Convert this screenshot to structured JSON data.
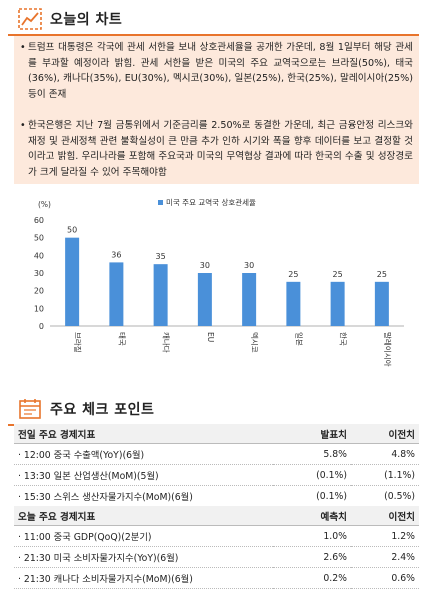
{
  "section1": {
    "title": "오늘의 차트",
    "bullet1": "트럼프 대통령은 각국에 관세 서한을 보내 상호관세율을 공개한 가운데, 8월 1일부터 해당 관세를 부과할 예정이라 밝힘. 관세 서한을 받은 미국의 주요 교역국으로는 브라질(50%), 태국(36%), 캐나다(35%), EU(30%), 멕시코(30%), 일본(25%), 한국(25%), 말레이시아(25%) 등이 존재",
    "bullet2": "한국은행은 지난 7월 금통위에서 기준금리를 2.50%로 동결한 가운데, 최근 금융안정 리스크와 재정 및 관세정책 관련 불확실성이 큰 만큼 추가 인하 시기와 폭을 향후 데이터를 보고 결정할 것이라고 밝힘. 우리나라를 포함해 주요국과 미국의 무역협상 결과에 따라 한국의 수출 및 성장경로가 크게 달라질 수 있어 주목해야함"
  },
  "chart_data": {
    "type": "bar",
    "unit_label": "(%)",
    "legend": "미국 주요 교역국 상호관세율",
    "categories": [
      "브라질",
      "태국",
      "캐나다",
      "EU",
      "멕시코",
      "일본",
      "한국",
      "말레이시아"
    ],
    "values": [
      50,
      36,
      35,
      30,
      30,
      25,
      25,
      25
    ],
    "ylim": [
      0,
      60
    ],
    "yticks": [
      0,
      10,
      20,
      30,
      40,
      50,
      60
    ],
    "bar_color": "#4a90d9",
    "grid": false,
    "legend_position": "top"
  },
  "section2": {
    "title": "주요 체크 포인트",
    "prev": {
      "header": [
        "전일 주요 경제지표",
        "발표치",
        "이전치"
      ],
      "rows": [
        [
          "· 12:00 중국 수출액(YoY)(6월)",
          "5.8%",
          "4.8%"
        ],
        [
          "· 13:30 일본 산업생산(MoM)(5월)",
          "(0.1%)",
          "(1.1%)"
        ],
        [
          "· 15:30 스위스 생산자물가지수(MoM)(6월)",
          "(0.1%)",
          "(0.5%)"
        ]
      ]
    },
    "today": {
      "header": [
        "오늘 주요 경제지표",
        "예측치",
        "이전치"
      ],
      "rows": [
        [
          "· 11:00 중국 GDP(QoQ)(2분기)",
          "1.0%",
          "1.2%"
        ],
        [
          "· 21:30 미국 소비자물가지수(YoY)(6월)",
          "2.6%",
          "2.4%"
        ],
        [
          "· 21:30 캐나다 소비자물가지수(MoM)(6월)",
          "0.2%",
          "0.6%"
        ]
      ]
    }
  },
  "colors": {
    "accent": "#e8742c",
    "box_bg": "#fde9dc",
    "header_bg": "#f1f1f1",
    "bar": "#4a90d9"
  }
}
